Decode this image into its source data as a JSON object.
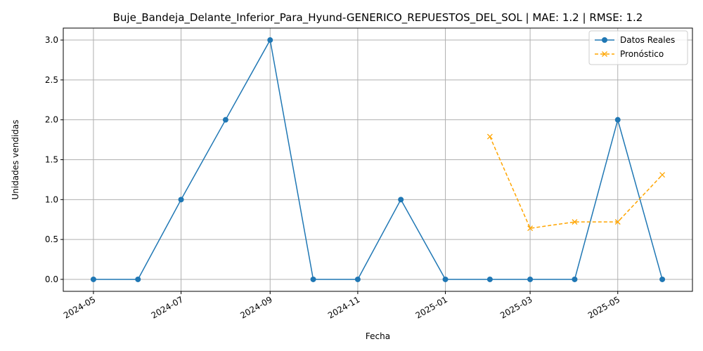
{
  "chart_data": {
    "type": "line",
    "title": "Buje_Bandeja_Delante_Inferior_Para_Hyund-GENERICO_REPUESTOS_DEL_SOL | MAE: 1.2 | RMSE: 1.2",
    "xlabel": "Fecha",
    "ylabel": "Unidades vendidas",
    "x_ticks": [
      "2024-05",
      "2024-07",
      "2024-09",
      "2024-11",
      "2025-01",
      "2025-03",
      "2025-05"
    ],
    "y_ticks": [
      0.0,
      0.5,
      1.0,
      1.5,
      2.0,
      2.5,
      3.0
    ],
    "y_tick_labels": [
      "0.0",
      "0.5",
      "1.0",
      "1.5",
      "2.0",
      "2.5",
      "3.0"
    ],
    "xlim": [
      "2024-04-10",
      "2025-06-22"
    ],
    "ylim": [
      -0.15,
      3.15
    ],
    "grid": true,
    "legend_position": "top-right",
    "series": [
      {
        "name": "Datos Reales",
        "color": "#1f77b4",
        "line_style": "solid",
        "marker": "circle",
        "x": [
          "2024-05-01",
          "2024-06-01",
          "2024-07-01",
          "2024-08-01",
          "2024-09-01",
          "2024-10-01",
          "2024-11-01",
          "2024-12-01",
          "2025-01-01",
          "2025-02-01",
          "2025-03-01",
          "2025-04-01",
          "2025-05-01",
          "2025-06-01"
        ],
        "values": [
          0,
          0,
          1,
          2,
          3,
          0,
          0,
          1,
          0,
          0,
          0,
          0,
          2,
          0
        ]
      },
      {
        "name": "Pronóstico",
        "color": "#ffa500",
        "line_style": "dashed",
        "marker": "x",
        "x": [
          "2025-02-01",
          "2025-03-01",
          "2025-04-01",
          "2025-05-01",
          "2025-06-01"
        ],
        "values": [
          1.79,
          0.64,
          0.72,
          0.72,
          1.31
        ]
      }
    ]
  }
}
